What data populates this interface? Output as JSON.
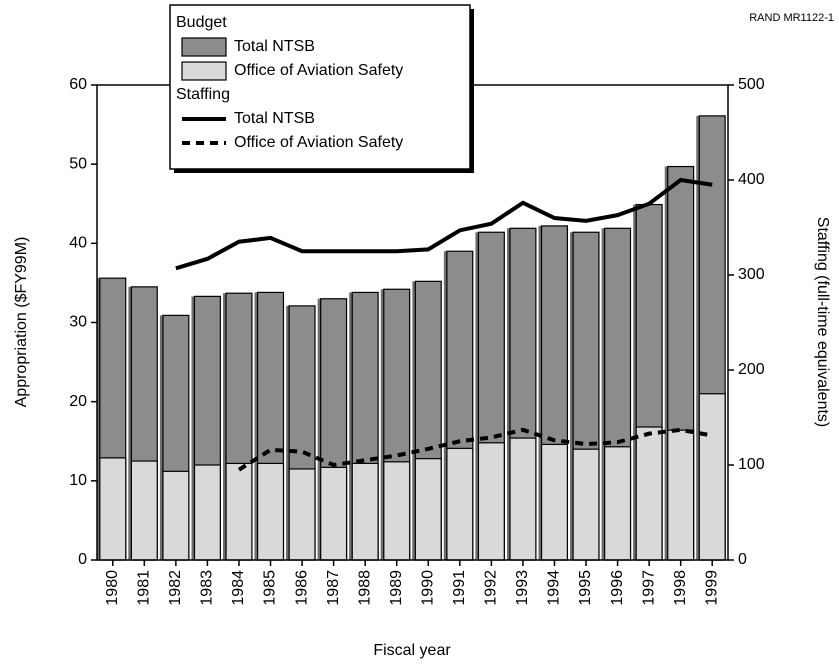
{
  "chart_data": {
    "type": "bar",
    "source_note": "RAND MR1122-1",
    "xlabel": "Fiscal year",
    "ylabel": "Appropriation ($FY99M)",
    "y2label": "Staffing (full-time equivalents)",
    "legend_groups": [
      "Budget",
      "Staffing"
    ],
    "categories": [
      "1980",
      "1981",
      "1982",
      "1983",
      "1984",
      "1985",
      "1986",
      "1987",
      "1988",
      "1989",
      "1990",
      "1991",
      "1992",
      "1993",
      "1994",
      "1995",
      "1996",
      "1997",
      "1998",
      "1999"
    ],
    "ylim": [
      0,
      60
    ],
    "yticks": [
      0,
      10,
      20,
      30,
      40,
      50,
      60
    ],
    "y2lim": [
      0,
      500
    ],
    "y2ticks": [
      0,
      100,
      200,
      300,
      400,
      500
    ],
    "series": [
      {
        "name": "Total NTSB",
        "group": "Budget",
        "type": "bar",
        "color": "#8c8c8c",
        "values": [
          35.6,
          34.5,
          30.9,
          33.3,
          33.7,
          33.8,
          32.1,
          33.0,
          33.8,
          34.2,
          35.2,
          39.0,
          41.4,
          41.9,
          42.2,
          41.4,
          41.9,
          44.9,
          49.7,
          56.1
        ]
      },
      {
        "name": "Office of Aviation Safety",
        "group": "Budget",
        "type": "bar",
        "color": "#d9d9d9",
        "values": [
          12.9,
          12.5,
          11.2,
          12.0,
          12.2,
          12.2,
          11.5,
          11.7,
          12.2,
          12.4,
          12.8,
          14.1,
          14.8,
          15.4,
          14.6,
          14.0,
          14.3,
          16.8,
          16.4,
          21.0
        ]
      },
      {
        "name": "Total NTSB",
        "group": "Staffing",
        "type": "line",
        "axis": "y2",
        "color": "#000000",
        "dash": false,
        "values": [
          null,
          null,
          307,
          317,
          335,
          339,
          325,
          325,
          325,
          325,
          327,
          347,
          354,
          376,
          360,
          357,
          363,
          375,
          400,
          395
        ]
      },
      {
        "name": "Office of Aviation Safety",
        "group": "Staffing",
        "type": "line",
        "axis": "y2",
        "color": "#000000",
        "dash": true,
        "values": [
          null,
          null,
          null,
          null,
          95,
          116,
          114,
          100,
          105,
          110,
          117,
          125,
          129,
          137,
          126,
          122,
          124,
          133,
          137,
          131
        ]
      }
    ]
  }
}
